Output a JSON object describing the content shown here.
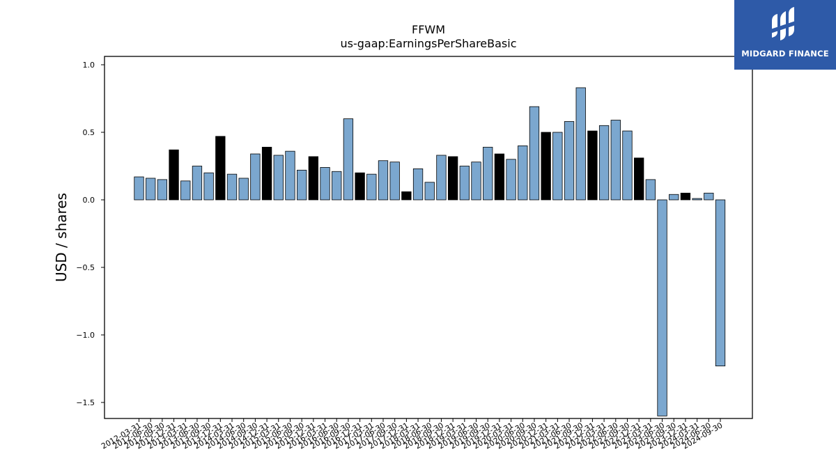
{
  "chart_data": {
    "type": "bar",
    "title": "FFWM",
    "subtitle": "us-gaap:EarningsPerShareBasic",
    "xlabel": "",
    "ylabel": "USD / shares",
    "ylim": [
      -1.6,
      1.06
    ],
    "yticks": [
      1.0,
      0.5,
      0.0,
      -0.5,
      -1.0,
      -1.5
    ],
    "ytick_labels": [
      "1.0",
      "0.5",
      "0.0",
      "−0.5",
      "−1.0",
      "−1.5"
    ],
    "grid": false,
    "colors": {
      "quarterly": "#7ba7cf",
      "annual": "#000000",
      "edge": "#000000"
    },
    "categories": [
      "2012-03-31",
      "2012-06-30",
      "2012-09-30",
      "2012-12-31",
      "2013-03-31",
      "2013-06-30",
      "2013-09-30",
      "2013-12-31",
      "2014-03-31",
      "2014-06-30",
      "2014-09-30",
      "2014-12-31",
      "2015-03-31",
      "2015-06-30",
      "2015-09-30",
      "2015-12-31",
      "2016-03-31",
      "2016-06-30",
      "2016-09-30",
      "2016-12-31",
      "2017-03-31",
      "2017-06-30",
      "2017-09-30",
      "2017-12-31",
      "2018-03-31",
      "2018-06-30",
      "2018-09-30",
      "2018-12-31",
      "2019-03-31",
      "2019-06-30",
      "2019-09-30",
      "2019-12-31",
      "2020-03-31",
      "2020-06-30",
      "2020-09-30",
      "2020-12-31",
      "2021-03-31",
      "2021-06-30",
      "2021-09-30",
      "2021-12-31",
      "2022-03-31",
      "2022-06-30",
      "2022-09-30",
      "2022-12-31",
      "2023-03-31",
      "2023-06-30",
      "2023-09-30",
      "2023-12-31",
      "2024-03-31",
      "2024-06-30",
      "2024-09-30"
    ],
    "values": [
      0.17,
      0.16,
      0.15,
      0.37,
      0.14,
      0.25,
      0.2,
      0.47,
      0.19,
      0.16,
      0.34,
      0.39,
      0.33,
      0.36,
      0.22,
      0.32,
      0.24,
      0.21,
      0.6,
      0.2,
      0.19,
      0.29,
      0.28,
      0.06,
      0.23,
      0.13,
      0.33,
      0.32,
      0.25,
      0.28,
      0.39,
      0.34,
      0.3,
      0.4,
      0.69,
      0.5,
      0.5,
      0.58,
      0.83,
      0.51,
      0.55,
      0.59,
      0.51,
      0.31,
      0.15,
      -1.6,
      0.04,
      0.05,
      0.01,
      0.05,
      -1.23
    ],
    "annual": [
      false,
      false,
      false,
      true,
      false,
      false,
      false,
      true,
      false,
      false,
      false,
      true,
      false,
      false,
      false,
      true,
      false,
      false,
      false,
      true,
      false,
      false,
      false,
      true,
      false,
      false,
      false,
      true,
      false,
      false,
      false,
      true,
      false,
      false,
      false,
      true,
      false,
      false,
      false,
      true,
      false,
      false,
      false,
      true,
      false,
      false,
      false,
      true,
      false,
      false,
      false
    ]
  },
  "logo": {
    "text": "MIDGARD FINANCE",
    "color": "#2e5aa8"
  }
}
